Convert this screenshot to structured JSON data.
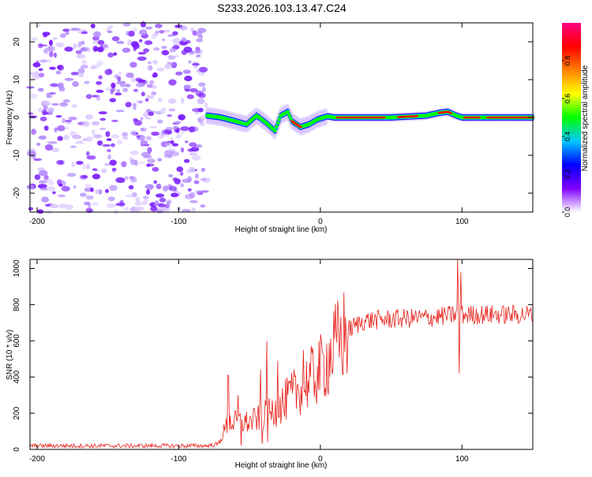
{
  "title": "S233.2026.103.13.47.C24",
  "chart_data": [
    {
      "type": "heatmap",
      "xlabel": "Height of straight line (km)",
      "ylabel": "Frequency (Hz)",
      "xlim": [
        -205,
        150
      ],
      "ylim": [
        -25,
        25
      ],
      "xticks": [
        -200,
        -100,
        0,
        100
      ],
      "yticks": [
        -20,
        -10,
        0,
        10,
        20
      ],
      "noise_region_x": [
        -205,
        -80
      ],
      "ridge": [
        {
          "x": -80,
          "f": 0.5
        },
        {
          "x": -70,
          "f": 0.0
        },
        {
          "x": -60,
          "f": -1.0
        },
        {
          "x": -52,
          "f": -1.8
        },
        {
          "x": -45,
          "f": 0.5
        },
        {
          "x": -38,
          "f": -1.5
        },
        {
          "x": -32,
          "f": -3.5
        },
        {
          "x": -28,
          "f": 0.5
        },
        {
          "x": -23,
          "f": 1.5
        },
        {
          "x": -20,
          "f": -1.0
        },
        {
          "x": -14,
          "f": -2.5
        },
        {
          "x": -8,
          "f": -1.8
        },
        {
          "x": -2,
          "f": -0.5
        },
        {
          "x": 5,
          "f": 0.3
        },
        {
          "x": 10,
          "f": 0.0
        },
        {
          "x": 50,
          "f": 0.0
        },
        {
          "x": 75,
          "f": 0.5
        },
        {
          "x": 85,
          "f": 1.3
        },
        {
          "x": 90,
          "f": 1.5
        },
        {
          "x": 96,
          "f": 0.5
        },
        {
          "x": 100,
          "f": 0.0
        },
        {
          "x": 150,
          "f": 0.0
        }
      ],
      "colorbar": {
        "label": "Normalized spectral amplitude",
        "range": [
          0,
          1
        ],
        "ticks": [
          0.0,
          0.2,
          0.4,
          0.6,
          0.8
        ],
        "tick_labels": [
          "0.0",
          "0.2",
          "0.4",
          "0.6",
          "0.8"
        ],
        "colors": [
          "#ffffff",
          "#8000ff",
          "#0000ff",
          "#00c8ff",
          "#00ff00",
          "#ffff00",
          "#ff8000",
          "#ff0000",
          "#ff0080"
        ]
      }
    },
    {
      "type": "line",
      "xlabel": "Height of straight line (km)",
      "ylabel": "SNR (10 * v/v)",
      "xlim": [
        -205,
        150
      ],
      "ylim": [
        0,
        1050
      ],
      "xticks": [
        -200,
        -100,
        0,
        100
      ],
      "yticks": [
        0,
        200,
        400,
        600,
        800,
        1000
      ],
      "series": [
        {
          "name": "SNR",
          "color": "#e8201a",
          "anchors": [
            {
              "x": -205,
              "y": 20
            },
            {
              "x": -80,
              "y": 20
            },
            {
              "x": -72,
              "y": 30
            },
            {
              "x": -65,
              "y": 150
            },
            {
              "x": -50,
              "y": 150
            },
            {
              "x": -35,
              "y": 200
            },
            {
              "x": -20,
              "y": 300
            },
            {
              "x": -10,
              "y": 370
            },
            {
              "x": 0,
              "y": 440
            },
            {
              "x": 10,
              "y": 560
            },
            {
              "x": 20,
              "y": 660
            },
            {
              "x": 30,
              "y": 710
            },
            {
              "x": 50,
              "y": 720
            },
            {
              "x": 80,
              "y": 730
            },
            {
              "x": 95,
              "y": 745
            },
            {
              "x": 110,
              "y": 745
            },
            {
              "x": 150,
              "y": 745
            }
          ],
          "spikes": [
            {
              "x": -65,
              "y": 410
            },
            {
              "x": -58,
              "y": 300
            },
            {
              "x": -56,
              "y": 20
            },
            {
              "x": -42,
              "y": 440
            },
            {
              "x": -41,
              "y": 30
            },
            {
              "x": -38,
              "y": 600
            },
            {
              "x": -37,
              "y": 40
            },
            {
              "x": -30,
              "y": 490
            },
            {
              "x": -25,
              "y": 180
            },
            {
              "x": -12,
              "y": 550
            },
            {
              "x": 97,
              "y": 1050
            },
            {
              "x": 98,
              "y": 420
            },
            {
              "x": 99,
              "y": 980
            }
          ]
        }
      ]
    }
  ]
}
